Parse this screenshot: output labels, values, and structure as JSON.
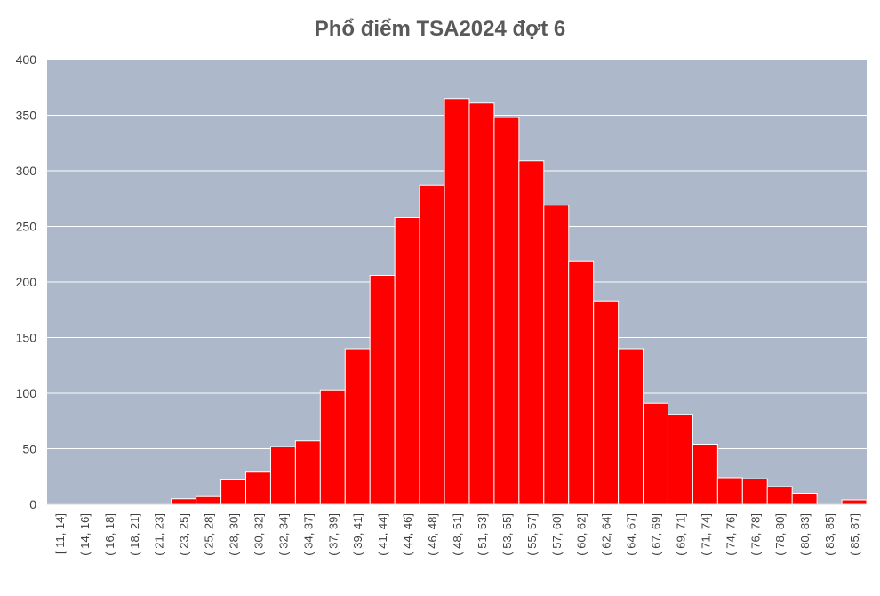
{
  "chart_data": {
    "type": "bar",
    "title": "Phổ điểm TSA2024 đợt 6",
    "xlabel": "",
    "ylabel": "",
    "ylim": [
      0,
      400
    ],
    "yticks": [
      0,
      50,
      100,
      150,
      200,
      250,
      300,
      350,
      400
    ],
    "grid": true,
    "legend": "none",
    "colors": {
      "bar": "#ff0000",
      "bar_edge": "#ffffff",
      "plot_bg": "#adb9ca",
      "grid": "#ffffff",
      "text": "#404040"
    },
    "categories": [
      "[ 11, 14]",
      "( 14, 16]",
      "( 16, 18]",
      "( 18, 21]",
      "( 21, 23]",
      "( 23, 25]",
      "( 25, 28]",
      "( 28, 30]",
      "( 30, 32]",
      "( 32, 34]",
      "( 34, 37]",
      "( 37, 39]",
      "( 39, 41]",
      "( 41, 44]",
      "( 44, 46]",
      "( 46, 48]",
      "( 48, 51]",
      "( 51, 53]",
      "( 53, 55]",
      "( 55, 57]",
      "( 57, 60]",
      "( 60, 62]",
      "( 62, 64]",
      "( 64, 67]",
      "( 67, 69]",
      "( 69, 71]",
      "( 71, 74]",
      "( 74, 76]",
      "( 76, 78]",
      "( 78, 80]",
      "( 80, 83]",
      "( 83, 85]",
      "( 85, 87]"
    ],
    "values": [
      0,
      0,
      0,
      0,
      0,
      5,
      7,
      22,
      29,
      52,
      57,
      103,
      140,
      206,
      258,
      287,
      365,
      361,
      348,
      309,
      269,
      219,
      183,
      140,
      91,
      81,
      54,
      24,
      23,
      16,
      10,
      0,
      4
    ]
  }
}
